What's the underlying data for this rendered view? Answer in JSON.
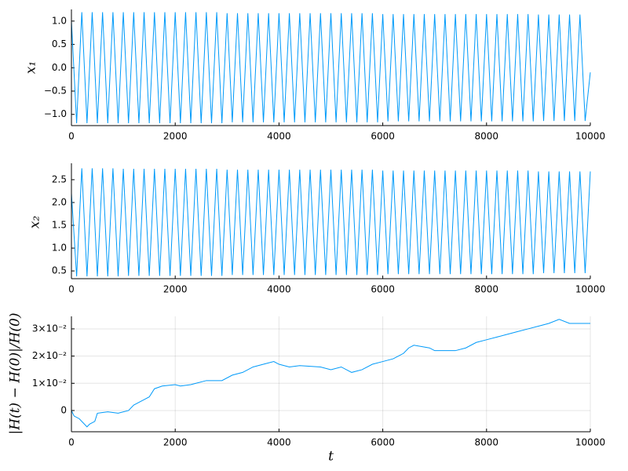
{
  "chart_data": [
    {
      "type": "line",
      "ylabel": "x₁",
      "color": "#009af9",
      "grid": false,
      "xlim": [
        0,
        10000
      ],
      "xticks": [
        0,
        2000,
        4000,
        6000,
        8000,
        10000
      ],
      "ylim": [
        -1.24,
        1.25
      ],
      "yticks": [
        {
          "value": -1,
          "label": "−1.0"
        },
        {
          "value": -0.5,
          "label": "−0.5"
        },
        {
          "value": 0,
          "label": "0.0"
        },
        0.5,
        {
          "value": 1,
          "label": "1.0"
        }
      ],
      "x": [
        0,
        100,
        200,
        300,
        400,
        500,
        600,
        700,
        800,
        900,
        1000,
        1100,
        1200,
        1300,
        1400,
        1500,
        1600,
        1700,
        1800,
        1900,
        2000,
        2100,
        2200,
        2300,
        2400,
        2500,
        2600,
        2700,
        2800,
        2900,
        3000,
        3100,
        3200,
        3300,
        3400,
        3500,
        3600,
        3700,
        3800,
        3900,
        4000,
        4100,
        4200,
        4300,
        4400,
        4500,
        4600,
        4700,
        4800,
        4900,
        5000,
        5100,
        5200,
        5300,
        5400,
        5500,
        5600,
        5700,
        5800,
        5900,
        6000,
        6100,
        6200,
        6300,
        6400,
        6500,
        6600,
        6700,
        6800,
        6900,
        7000,
        7100,
        7200,
        7300,
        7400,
        7500,
        7600,
        7700,
        7800,
        7900,
        8000,
        8100,
        8200,
        8300,
        8400,
        8500,
        8600,
        8700,
        8800,
        8900,
        9000,
        9100,
        9200,
        9300,
        9400,
        9500,
        9600,
        9700,
        9800,
        9900,
        10000
      ],
      "values": [
        1.0,
        -1.19,
        1.19,
        -1.19,
        1.19,
        -1.19,
        1.19,
        -1.19,
        1.19,
        -1.19,
        1.19,
        -1.19,
        1.19,
        -1.19,
        1.19,
        -1.19,
        1.19,
        -1.19,
        1.19,
        -1.19,
        1.19,
        -1.19,
        1.19,
        -1.19,
        1.19,
        -1.19,
        1.19,
        -1.19,
        1.19,
        -1.19,
        1.17,
        -1.17,
        1.17,
        -1.17,
        1.17,
        -1.17,
        1.17,
        -1.17,
        1.17,
        -1.17,
        1.17,
        -1.17,
        1.17,
        -1.17,
        1.17,
        -1.17,
        1.17,
        -1.17,
        1.17,
        -1.17,
        1.17,
        -1.17,
        1.17,
        -1.17,
        1.17,
        -1.17,
        1.17,
        -1.17,
        1.17,
        -1.17,
        1.15,
        -1.15,
        1.15,
        -1.15,
        1.15,
        -1.15,
        1.15,
        -1.15,
        1.15,
        -1.15,
        1.15,
        -1.15,
        1.15,
        -1.15,
        1.15,
        -1.15,
        1.15,
        -1.15,
        1.15,
        -1.15,
        1.15,
        -1.15,
        1.15,
        -1.15,
        1.15,
        -1.15,
        1.15,
        -1.15,
        1.15,
        -1.15,
        1.14,
        -1.14,
        1.14,
        -1.14,
        1.14,
        -1.14,
        1.14,
        -1.14,
        1.14,
        -1.14,
        -0.1
      ]
    },
    {
      "type": "line",
      "ylabel": "x₂",
      "color": "#009af9",
      "grid": false,
      "xlim": [
        0,
        10000
      ],
      "xticks": [
        0,
        2000,
        4000,
        6000,
        8000,
        10000
      ],
      "ylim": [
        0.33,
        2.86
      ],
      "yticks": [
        0.5,
        {
          "value": 1,
          "label": "1.0"
        },
        1.5,
        {
          "value": 2,
          "label": "2.0"
        },
        2.5
      ],
      "x": [
        0,
        100,
        200,
        300,
        400,
        500,
        600,
        700,
        800,
        900,
        1000,
        1100,
        1200,
        1300,
        1400,
        1500,
        1600,
        1700,
        1800,
        1900,
        2000,
        2100,
        2200,
        2300,
        2400,
        2500,
        2600,
        2700,
        2800,
        2900,
        3000,
        3100,
        3200,
        3300,
        3400,
        3500,
        3600,
        3700,
        3800,
        3900,
        4000,
        4100,
        4200,
        4300,
        4400,
        4500,
        4600,
        4700,
        4800,
        4900,
        5000,
        5100,
        5200,
        5300,
        5400,
        5500,
        5600,
        5700,
        5800,
        5900,
        6000,
        6100,
        6200,
        6300,
        6400,
        6500,
        6600,
        6700,
        6800,
        6900,
        7000,
        7100,
        7200,
        7300,
        7400,
        7500,
        7600,
        7700,
        7800,
        7900,
        8000,
        8100,
        8200,
        8300,
        8400,
        8500,
        8600,
        8700,
        8800,
        8900,
        9000,
        9100,
        9200,
        9300,
        9400,
        9500,
        9600,
        9700,
        9800,
        9900,
        10000
      ],
      "values": [
        2.2,
        0.38,
        2.75,
        0.38,
        2.75,
        0.38,
        2.75,
        0.38,
        2.75,
        0.38,
        2.74,
        0.39,
        2.74,
        0.39,
        2.74,
        0.39,
        2.74,
        0.39,
        2.74,
        0.39,
        2.74,
        0.39,
        2.74,
        0.39,
        2.74,
        0.39,
        2.74,
        0.39,
        2.74,
        0.39,
        2.72,
        0.41,
        2.72,
        0.41,
        2.72,
        0.41,
        2.72,
        0.41,
        2.72,
        0.41,
        2.72,
        0.41,
        2.72,
        0.41,
        2.72,
        0.41,
        2.72,
        0.41,
        2.72,
        0.41,
        2.72,
        0.41,
        2.72,
        0.41,
        2.72,
        0.41,
        2.72,
        0.41,
        2.72,
        0.41,
        2.7,
        0.43,
        2.7,
        0.43,
        2.7,
        0.43,
        2.7,
        0.43,
        2.7,
        0.43,
        2.7,
        0.43,
        2.7,
        0.43,
        2.7,
        0.43,
        2.7,
        0.43,
        2.7,
        0.43,
        2.7,
        0.43,
        2.7,
        0.43,
        2.7,
        0.43,
        2.7,
        0.43,
        2.7,
        0.43,
        2.68,
        0.45,
        2.68,
        0.45,
        2.68,
        0.45,
        2.68,
        0.45,
        2.68,
        0.45,
        2.68
      ]
    },
    {
      "type": "line",
      "ylabel": "|H(t) − H(0)|/H(0)",
      "xlabel": "t",
      "color": "#009af9",
      "grid": true,
      "xlim": [
        0,
        10000
      ],
      "xticks": [
        0,
        2000,
        4000,
        6000,
        8000,
        10000
      ],
      "ylim": [
        -0.0078,
        0.0346
      ],
      "yticks": [
        0,
        {
          "value": 0.01,
          "label": "1×10⁻²"
        },
        {
          "value": 0.02,
          "label": "2×10⁻²"
        },
        {
          "value": 0.03,
          "label": "3×10⁻²"
        }
      ],
      "x": [
        0,
        50,
        150,
        300,
        350,
        450,
        500,
        700,
        900,
        1100,
        1200,
        1300,
        1500,
        1600,
        1750,
        2000,
        2100,
        2300,
        2400,
        2600,
        2900,
        3100,
        3300,
        3500,
        3700,
        3900,
        4000,
        4200,
        4400,
        4800,
        5000,
        5200,
        5400,
        5600,
        5800,
        6000,
        6200,
        6400,
        6500,
        6600,
        6900,
        7000,
        7400,
        7600,
        7800,
        8000,
        8200,
        8400,
        8600,
        8800,
        9000,
        9200,
        9400,
        9600,
        10000
      ],
      "values": [
        0,
        -0.002,
        -0.003,
        -0.006,
        -0.005,
        -0.004,
        -0.001,
        -0.0005,
        -0.001,
        0,
        0.002,
        0.003,
        0.005,
        0.008,
        0.009,
        0.0095,
        0.009,
        0.0095,
        0.01,
        0.011,
        0.011,
        0.013,
        0.014,
        0.016,
        0.017,
        0.018,
        0.017,
        0.016,
        0.0165,
        0.016,
        0.015,
        0.016,
        0.014,
        0.015,
        0.017,
        0.018,
        0.019,
        0.021,
        0.023,
        0.024,
        0.023,
        0.022,
        0.022,
        0.023,
        0.025,
        0.026,
        0.027,
        0.028,
        0.029,
        0.03,
        0.031,
        0.032,
        0.0335,
        0.032,
        0.032
      ]
    }
  ]
}
